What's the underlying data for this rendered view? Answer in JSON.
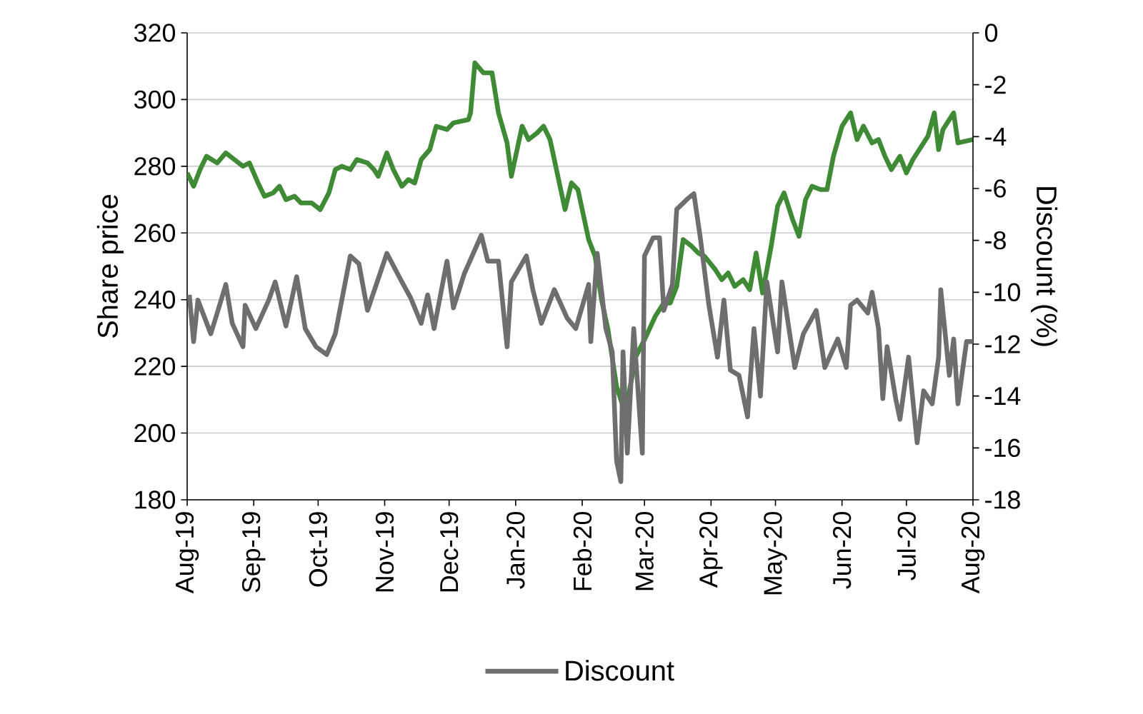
{
  "chart_data": {
    "type": "line",
    "ylabel": "Share price",
    "y2label": "Discount (%)",
    "xlim": [
      "2019-08-01",
      "2020-08-01"
    ],
    "xticks": [
      {
        "value": "2019-08-01",
        "label": "Aug-19"
      },
      {
        "value": "2019-09-01",
        "label": "Sep-19"
      },
      {
        "value": "2019-10-01",
        "label": "Oct-19"
      },
      {
        "value": "2019-11-01",
        "label": "Nov-19"
      },
      {
        "value": "2019-12-01",
        "label": "Dec-19"
      },
      {
        "value": "2020-01-01",
        "label": "Jan-20"
      },
      {
        "value": "2020-02-01",
        "label": "Feb-20"
      },
      {
        "value": "2020-03-01",
        "label": "Mar-20"
      },
      {
        "value": "2020-04-01",
        "label": "Apr-20"
      },
      {
        "value": "2020-05-01",
        "label": "May-20"
      },
      {
        "value": "2020-06-01",
        "label": "Jun-20"
      },
      {
        "value": "2020-07-01",
        "label": "Jul-20"
      },
      {
        "value": "2020-08-01",
        "label": "Aug-20"
      }
    ],
    "ylim": [
      180,
      320
    ],
    "yticks": [
      180,
      200,
      220,
      240,
      260,
      280,
      300,
      320
    ],
    "y2lim": [
      -18,
      0
    ],
    "y2ticks": [
      -18,
      -16,
      -14,
      -12,
      -10,
      -8,
      -6,
      -4,
      -2,
      0
    ],
    "grid": "y",
    "legend": "bottom",
    "marker": "none",
    "line_style": "solid",
    "series": [
      {
        "color": "#3f8a34",
        "axis": "y",
        "x": [
          "2019-08-01",
          "2019-08-04",
          "2019-08-07",
          "2019-08-10",
          "2019-08-15",
          "2019-08-19",
          "2019-08-23",
          "2019-08-27",
          "2019-08-30",
          "2019-09-03",
          "2019-09-06",
          "2019-09-10",
          "2019-09-13",
          "2019-09-16",
          "2019-09-20",
          "2019-09-23",
          "2019-09-28",
          "2019-10-02",
          "2019-10-06",
          "2019-10-09",
          "2019-10-12",
          "2019-10-16",
          "2019-10-19",
          "2019-10-24",
          "2019-10-27",
          "2019-10-29",
          "2019-11-02",
          "2019-11-05",
          "2019-11-09",
          "2019-11-12",
          "2019-11-15",
          "2019-11-18",
          "2019-11-22",
          "2019-11-25",
          "2019-11-30",
          "2019-12-03",
          "2019-12-10",
          "2019-12-11",
          "2019-12-13",
          "2019-12-17",
          "2019-12-21",
          "2019-12-24",
          "2019-12-28",
          "2019-12-30",
          "2020-01-04",
          "2020-01-07",
          "2020-01-11",
          "2020-01-14",
          "2020-01-17",
          "2020-01-21",
          "2020-01-24",
          "2020-01-27",
          "2020-01-30",
          "2020-02-04",
          "2020-02-07",
          "2020-02-10",
          "2020-02-13",
          "2020-02-17",
          "2020-02-21",
          "2020-02-26",
          "2020-03-01",
          "2020-03-06",
          "2020-03-10",
          "2020-03-13",
          "2020-03-16",
          "2020-03-19",
          "2020-03-23",
          "2020-03-26",
          "2020-03-29",
          "2020-04-03",
          "2020-04-06",
          "2020-04-09",
          "2020-04-12",
          "2020-04-16",
          "2020-04-19",
          "2020-04-22",
          "2020-04-25",
          "2020-04-29",
          "2020-05-02",
          "2020-05-05",
          "2020-05-09",
          "2020-05-12",
          "2020-05-15",
          "2020-05-18",
          "2020-05-22",
          "2020-05-25",
          "2020-05-28",
          "2020-06-01",
          "2020-06-05",
          "2020-06-08",
          "2020-06-11",
          "2020-06-15",
          "2020-06-18",
          "2020-06-21",
          "2020-06-24",
          "2020-06-28",
          "2020-07-01",
          "2020-07-04",
          "2020-07-07",
          "2020-07-11",
          "2020-07-14",
          "2020-07-16",
          "2020-07-18",
          "2020-07-23",
          "2020-07-25",
          "2020-08-01"
        ],
        "values": [
          278,
          274,
          279,
          283,
          281,
          284,
          282,
          280,
          281,
          275,
          271,
          272,
          274,
          270,
          271,
          269,
          269,
          267,
          272,
          279,
          280,
          279,
          282,
          281,
          279,
          277,
          284,
          279,
          274,
          276,
          275,
          282,
          285,
          292,
          291,
          293,
          294,
          296,
          311,
          308,
          308,
          296,
          287,
          277,
          292,
          288,
          290,
          292,
          288,
          276,
          267,
          275,
          273,
          258,
          253,
          240,
          231,
          214,
          206,
          223,
          228,
          235,
          239,
          239,
          244,
          258,
          256,
          254,
          253,
          249,
          246,
          248,
          244,
          246,
          243,
          254,
          242,
          256,
          268,
          272,
          264,
          259,
          270,
          274,
          273,
          273,
          283,
          292,
          296,
          288,
          292,
          287,
          288,
          283,
          279,
          283,
          278,
          282,
          285,
          289,
          296,
          285,
          291,
          296,
          287,
          288
        ]
      },
      {
        "name": "Discount",
        "color": "#6e6e6e",
        "axis": "y2",
        "x": [
          "2019-08-02",
          "2019-08-04",
          "2019-08-06",
          "2019-08-12",
          "2019-08-15",
          "2019-08-19",
          "2019-08-22",
          "2019-08-27",
          "2019-08-28",
          "2019-09-02",
          "2019-09-08",
          "2019-09-11",
          "2019-09-16",
          "2019-09-21",
          "2019-09-25",
          "2019-09-30",
          "2019-10-05",
          "2019-10-09",
          "2019-10-16",
          "2019-10-20",
          "2019-10-24",
          "2019-11-02",
          "2019-11-09",
          "2019-11-13",
          "2019-11-18",
          "2019-11-21",
          "2019-11-24",
          "2019-11-30",
          "2019-12-03",
          "2019-12-08",
          "2019-12-16",
          "2019-12-19",
          "2019-12-24",
          "2019-12-28",
          "2019-12-30",
          "2020-01-06",
          "2020-01-09",
          "2020-01-13",
          "2020-01-19",
          "2020-01-25",
          "2020-01-29",
          "2020-02-04",
          "2020-02-05",
          "2020-02-08",
          "2020-02-12",
          "2020-02-15",
          "2020-02-17",
          "2020-02-19",
          "2020-02-20",
          "2020-02-22",
          "2020-02-25",
          "2020-02-29",
          "2020-03-01",
          "2020-03-05",
          "2020-03-08",
          "2020-03-10",
          "2020-03-14",
          "2020-03-16",
          "2020-03-21",
          "2020-03-24",
          "2020-03-27",
          "2020-03-31",
          "2020-04-04",
          "2020-04-07",
          "2020-04-10",
          "2020-04-14",
          "2020-04-18",
          "2020-04-21",
          "2020-04-24",
          "2020-04-27",
          "2020-05-02",
          "2020-05-04",
          "2020-05-10",
          "2020-05-14",
          "2020-05-20",
          "2020-05-24",
          "2020-05-30",
          "2020-06-03",
          "2020-06-05",
          "2020-06-08",
          "2020-06-13",
          "2020-06-15",
          "2020-06-18",
          "2020-06-20",
          "2020-06-22",
          "2020-06-26",
          "2020-06-28",
          "2020-07-02",
          "2020-07-06",
          "2020-07-09",
          "2020-07-13",
          "2020-07-16",
          "2020-07-17",
          "2020-07-21",
          "2020-07-23",
          "2020-07-25",
          "2020-07-29",
          "2020-08-01"
        ],
        "values": [
          -10.1,
          -11.9,
          -10.3,
          -11.6,
          -10.8,
          -9.7,
          -11.2,
          -12.1,
          -10.5,
          -11.4,
          -10.3,
          -9.6,
          -11.3,
          -9.4,
          -11.4,
          -12.1,
          -12.4,
          -11.6,
          -8.6,
          -8.9,
          -10.7,
          -8.5,
          -9.6,
          -10.2,
          -11.2,
          -10.1,
          -11.4,
          -8.8,
          -10.6,
          -9.3,
          -7.8,
          -8.8,
          -8.8,
          -12.1,
          -9.6,
          -8.6,
          -9.9,
          -11.2,
          -9.9,
          -11.0,
          -11.4,
          -9.7,
          -11.9,
          -8.5,
          -11.4,
          -12.3,
          -16.5,
          -17.3,
          -12.3,
          -16.2,
          -11.4,
          -16.2,
          -8.6,
          -7.9,
          -7.9,
          -10.7,
          -9.7,
          -6.8,
          -6.4,
          -6.2,
          -7.9,
          -10.5,
          -12.5,
          -10.3,
          -13.0,
          -13.2,
          -14.8,
          -11.4,
          -14.0,
          -9.6,
          -12.3,
          -9.6,
          -12.9,
          -11.6,
          -10.7,
          -12.9,
          -11.8,
          -12.9,
          -10.5,
          -10.3,
          -10.8,
          -10.0,
          -11.4,
          -14.1,
          -12.1,
          -14.1,
          -14.9,
          -12.5,
          -15.8,
          -13.8,
          -14.3,
          -12.5,
          -9.9,
          -13.2,
          -11.8,
          -14.3,
          -11.9,
          -11.9
        ]
      }
    ]
  }
}
